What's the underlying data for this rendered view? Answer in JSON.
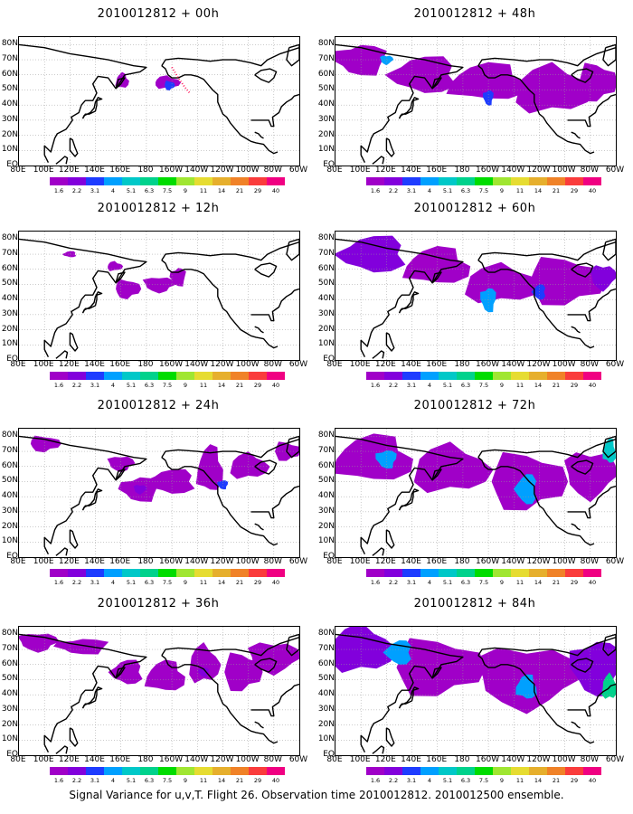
{
  "caption": "Signal Variance for u,v,T. Flight 26. Observation time 2010012812. 2010012500 ensemble.",
  "y_ticks": [
    "80N",
    "70N",
    "60N",
    "50N",
    "40N",
    "30N",
    "20N",
    "10N",
    "EQ"
  ],
  "x_ticks": [
    "80E",
    "100E",
    "120E",
    "140E",
    "160E",
    "180",
    "160W",
    "140W",
    "120W",
    "100W",
    "80W",
    "60W"
  ],
  "colorbar": {
    "labels": [
      "1.6",
      "2.2",
      "3.1",
      "4",
      "5.1",
      "6.3",
      "7.5",
      "9",
      "11",
      "14",
      "21",
      "29",
      "40"
    ],
    "colors": [
      "#a000c8",
      "#8200dc",
      "#1e3cff",
      "#00a0ff",
      "#00c8c8",
      "#00d28c",
      "#00dc00",
      "#a0e632",
      "#e6dc32",
      "#e6af2d",
      "#f08228",
      "#fa3c3c",
      "#f00082"
    ]
  },
  "panels": [
    {
      "title": "2010012812 + 00h",
      "level": 0
    },
    {
      "title": "2010012812 + 12h",
      "level": 1
    },
    {
      "title": "2010012812 + 24h",
      "level": 2
    },
    {
      "title": "2010012812 + 36h",
      "level": 3
    },
    {
      "title": "2010012812 + 48h",
      "level": 4
    },
    {
      "title": "2010012812 + 60h",
      "level": 5
    },
    {
      "title": "2010012812 + 72h",
      "level": 6
    },
    {
      "title": "2010012812 + 84h",
      "level": 7
    }
  ]
}
